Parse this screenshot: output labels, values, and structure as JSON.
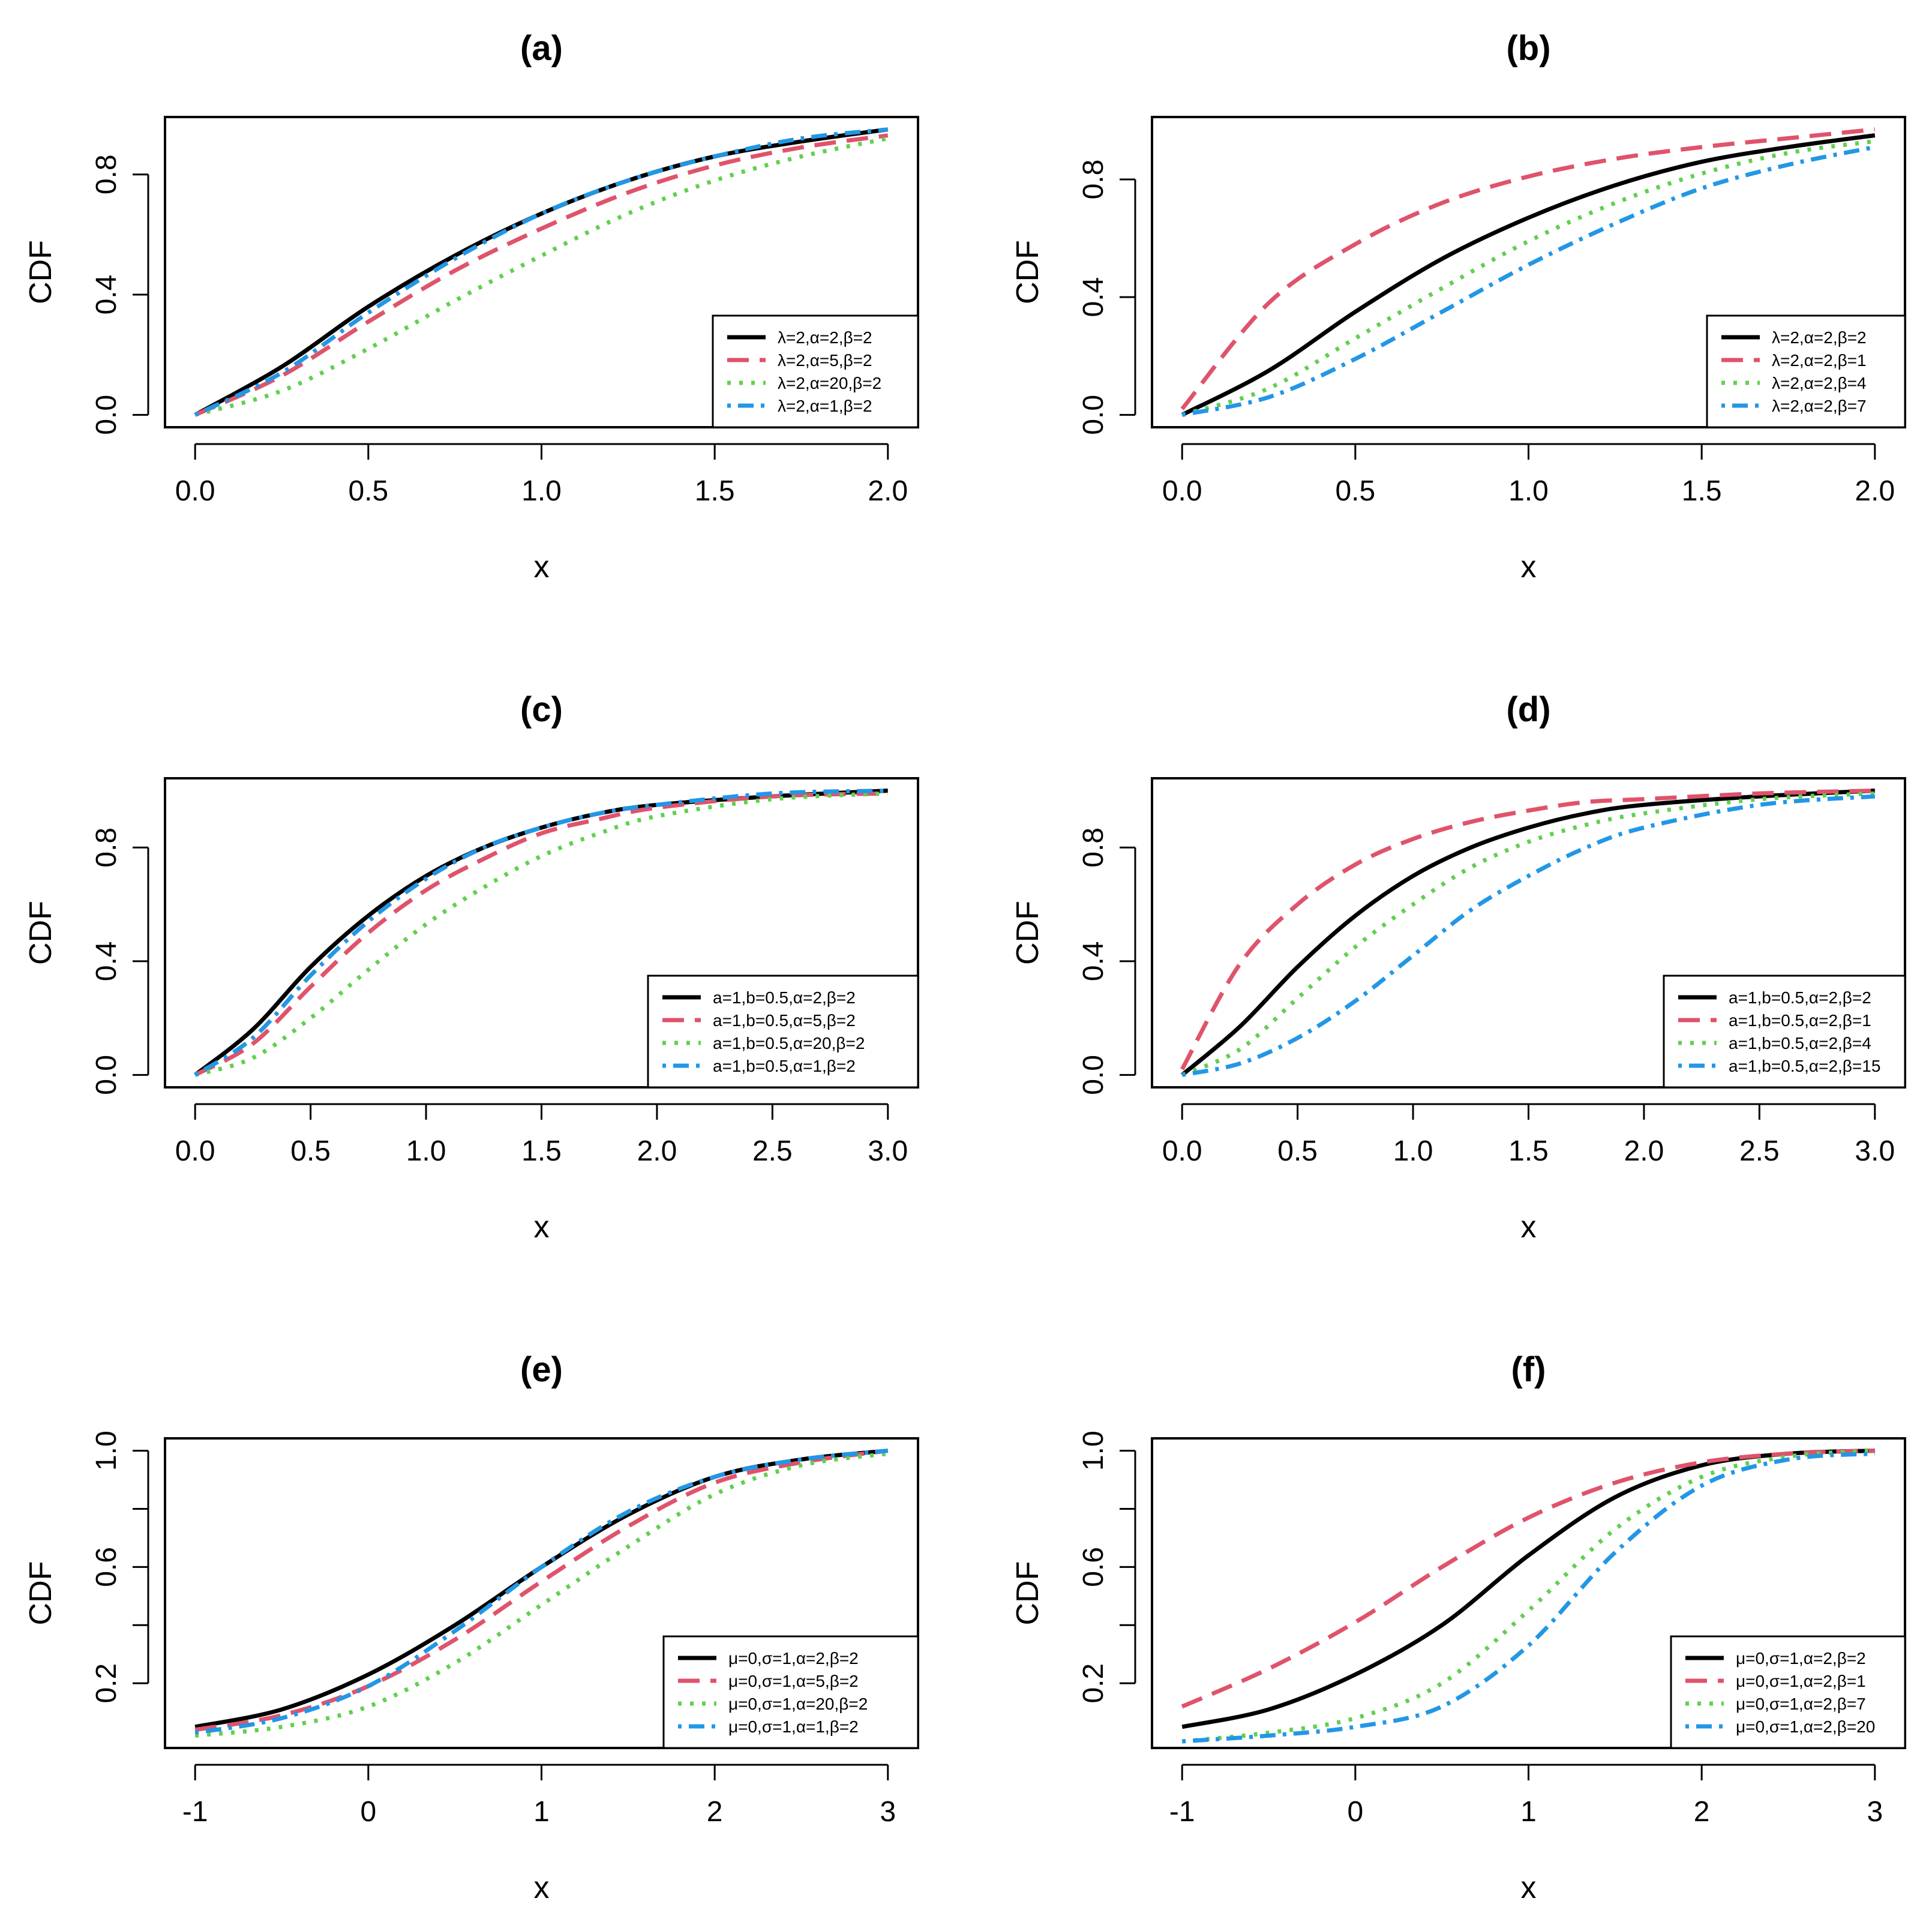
{
  "colors": {
    "black": "#000000",
    "red": "#DF536B",
    "green": "#61D04F",
    "blue": "#2297E6"
  },
  "chart_data": [
    {
      "type": "line",
      "title": "(a)",
      "xlabel": "x",
      "ylabel": "CDF",
      "xlim": [
        0,
        2
      ],
      "ylim": [
        0,
        0.95
      ],
      "xticks": [
        0.0,
        0.5,
        1.0,
        1.5,
        2.0
      ],
      "xtick_labels": [
        "0.0",
        "0.5",
        "1.0",
        "1.5",
        "2.0"
      ],
      "yticks": [
        0.0,
        0.4,
        0.8
      ],
      "ytick_labels": [
        "0.0",
        "0.4",
        "0.8"
      ],
      "legend_position": "bottom-right",
      "x": [
        0,
        0.25,
        0.5,
        0.75,
        1.0,
        1.25,
        1.5,
        1.75,
        2.0
      ],
      "series": [
        {
          "name": "λ=2,α=2,β=2",
          "color": "black",
          "dash": "solid",
          "values": [
            0.0,
            0.16,
            0.36,
            0.53,
            0.67,
            0.78,
            0.86,
            0.91,
            0.95
          ]
        },
        {
          "name": "λ=2,α=5,β=2",
          "color": "red",
          "dash": "dashed",
          "values": [
            0.0,
            0.13,
            0.31,
            0.48,
            0.62,
            0.74,
            0.83,
            0.89,
            0.93
          ]
        },
        {
          "name": "λ=2,α=20,β=2",
          "color": "green",
          "dash": "dotted",
          "values": [
            0.0,
            0.08,
            0.22,
            0.38,
            0.53,
            0.67,
            0.78,
            0.86,
            0.92
          ]
        },
        {
          "name": "λ=2,α=1,β=2",
          "color": "blue",
          "dash": "dotdash",
          "values": [
            0.0,
            0.14,
            0.34,
            0.52,
            0.67,
            0.78,
            0.86,
            0.92,
            0.95
          ]
        }
      ]
    },
    {
      "type": "line",
      "title": "(b)",
      "xlabel": "x",
      "ylabel": "CDF",
      "xlim": [
        0,
        2
      ],
      "ylim": [
        0,
        0.97
      ],
      "xticks": [
        0.0,
        0.5,
        1.0,
        1.5,
        2.0
      ],
      "xtick_labels": [
        "0.0",
        "0.5",
        "1.0",
        "1.5",
        "2.0"
      ],
      "yticks": [
        0.0,
        0.4,
        0.8
      ],
      "ytick_labels": [
        "0.0",
        "0.4",
        "0.8"
      ],
      "legend_position": "bottom-right",
      "x": [
        0,
        0.25,
        0.5,
        0.75,
        1.0,
        1.25,
        1.5,
        1.75,
        2.0
      ],
      "series": [
        {
          "name": "λ=2,α=2,β=2",
          "color": "black",
          "dash": "solid",
          "values": [
            0.0,
            0.15,
            0.35,
            0.53,
            0.67,
            0.78,
            0.86,
            0.91,
            0.95
          ]
        },
        {
          "name": "λ=2,α=2,β=1",
          "color": "red",
          "dash": "dashed",
          "values": [
            0.02,
            0.38,
            0.58,
            0.72,
            0.81,
            0.87,
            0.91,
            0.94,
            0.97
          ]
        },
        {
          "name": "λ=2,α=2,β=4",
          "color": "green",
          "dash": "dotted",
          "values": [
            0.0,
            0.09,
            0.26,
            0.43,
            0.59,
            0.72,
            0.82,
            0.89,
            0.93
          ]
        },
        {
          "name": "λ=2,α=2,β=7",
          "color": "blue",
          "dash": "dotdash",
          "values": [
            0.0,
            0.06,
            0.19,
            0.35,
            0.51,
            0.65,
            0.77,
            0.85,
            0.91
          ]
        }
      ]
    },
    {
      "type": "line",
      "title": "(c)",
      "xlabel": "x",
      "ylabel": "CDF",
      "xlim": [
        0,
        3
      ],
      "ylim": [
        0,
        1.0
      ],
      "xticks": [
        0.0,
        0.5,
        1.0,
        1.5,
        2.0,
        2.5,
        3.0
      ],
      "xtick_labels": [
        "0.0",
        "0.5",
        "1.0",
        "1.5",
        "2.0",
        "2.5",
        "3.0"
      ],
      "yticks": [
        0.0,
        0.4,
        0.8
      ],
      "ytick_labels": [
        "0.0",
        "0.4",
        "0.8"
      ],
      "legend_position": "bottom-right",
      "x": [
        0,
        0.25,
        0.5,
        0.75,
        1.0,
        1.25,
        1.5,
        1.75,
        2.0,
        2.5,
        3.0
      ],
      "series": [
        {
          "name": "a=1,b=0.5,α=2,β=2",
          "color": "black",
          "dash": "solid",
          "values": [
            0.0,
            0.16,
            0.38,
            0.56,
            0.7,
            0.8,
            0.87,
            0.92,
            0.95,
            0.98,
            1.0
          ]
        },
        {
          "name": "a=1,b=0.5,α=5,β=2",
          "color": "red",
          "dash": "dashed",
          "values": [
            0.0,
            0.11,
            0.31,
            0.5,
            0.65,
            0.76,
            0.85,
            0.9,
            0.94,
            0.98,
            0.99
          ]
        },
        {
          "name": "a=1,b=0.5,α=20,β=2",
          "color": "green",
          "dash": "dotted",
          "values": [
            0.0,
            0.06,
            0.2,
            0.37,
            0.53,
            0.66,
            0.77,
            0.85,
            0.91,
            0.97,
            0.99
          ]
        },
        {
          "name": "a=1,b=0.5,α=1,β=2",
          "color": "blue",
          "dash": "dotdash",
          "values": [
            0.0,
            0.13,
            0.35,
            0.54,
            0.69,
            0.8,
            0.87,
            0.92,
            0.95,
            0.99,
            1.0
          ]
        }
      ]
    },
    {
      "type": "line",
      "title": "(d)",
      "xlabel": "x",
      "ylabel": "CDF",
      "xlim": [
        0,
        3
      ],
      "ylim": [
        0,
        1.0
      ],
      "xticks": [
        0.0,
        0.5,
        1.0,
        1.5,
        2.0,
        2.5,
        3.0
      ],
      "xtick_labels": [
        "0.0",
        "0.5",
        "1.0",
        "1.5",
        "2.0",
        "2.5",
        "3.0"
      ],
      "yticks": [
        0.0,
        0.4,
        0.8
      ],
      "ytick_labels": [
        "0.0",
        "0.4",
        "0.8"
      ],
      "legend_position": "bottom-right",
      "x": [
        0,
        0.25,
        0.5,
        0.75,
        1.0,
        1.25,
        1.5,
        1.75,
        2.0,
        2.5,
        3.0
      ],
      "series": [
        {
          "name": "a=1,b=0.5,α=2,β=2",
          "color": "black",
          "dash": "solid",
          "values": [
            0.0,
            0.17,
            0.38,
            0.56,
            0.7,
            0.8,
            0.87,
            0.92,
            0.95,
            0.98,
            1.0
          ]
        },
        {
          "name": "a=1,b=0.5,α=2,β=1",
          "color": "red",
          "dash": "dashed",
          "values": [
            0.02,
            0.39,
            0.6,
            0.74,
            0.83,
            0.89,
            0.93,
            0.96,
            0.97,
            0.99,
            1.0
          ]
        },
        {
          "name": "a=1,b=0.5,α=2,β=4",
          "color": "green",
          "dash": "dotted",
          "values": [
            0.0,
            0.09,
            0.27,
            0.45,
            0.6,
            0.73,
            0.82,
            0.88,
            0.92,
            0.97,
            0.99
          ]
        },
        {
          "name": "a=1,b=0.5,α=2,β=15",
          "color": "blue",
          "dash": "dotdash",
          "values": [
            0.0,
            0.04,
            0.13,
            0.26,
            0.42,
            0.58,
            0.7,
            0.8,
            0.87,
            0.95,
            0.98
          ]
        }
      ]
    },
    {
      "type": "line",
      "title": "(e)",
      "xlabel": "x",
      "ylabel": "CDF",
      "xlim": [
        -1,
        3
      ],
      "ylim": [
        0.02,
        1.0
      ],
      "xticks": [
        -1,
        0,
        1,
        2,
        3
      ],
      "xtick_labels": [
        "-1",
        "0",
        "1",
        "2",
        "3"
      ],
      "yticks": [
        0.2,
        0.6,
        1.0
      ],
      "ytick_labels": [
        "0.2",
        "0.6",
        "1.0"
      ],
      "yminor": [
        0.4,
        0.8
      ],
      "legend_position": "bottom-right",
      "x": [
        -1,
        -0.5,
        0,
        0.5,
        1.0,
        1.5,
        2.0,
        2.5,
        3.0
      ],
      "series": [
        {
          "name": "μ=0,σ=1,α=2,β=2",
          "color": "black",
          "dash": "solid",
          "values": [
            0.05,
            0.11,
            0.23,
            0.4,
            0.6,
            0.78,
            0.91,
            0.97,
            1.0
          ]
        },
        {
          "name": "μ=0,σ=1,α=5,β=2",
          "color": "red",
          "dash": "dashed",
          "values": [
            0.04,
            0.09,
            0.19,
            0.35,
            0.55,
            0.74,
            0.89,
            0.96,
            1.0
          ]
        },
        {
          "name": "μ=0,σ=1,α=20,β=2",
          "color": "green",
          "dash": "dotted",
          "values": [
            0.02,
            0.05,
            0.12,
            0.27,
            0.47,
            0.67,
            0.85,
            0.95,
            0.99
          ]
        },
        {
          "name": "μ=0,σ=1,α=1,β=2",
          "color": "blue",
          "dash": "dotdash",
          "values": [
            0.03,
            0.08,
            0.19,
            0.38,
            0.6,
            0.79,
            0.91,
            0.97,
            1.0
          ]
        }
      ]
    },
    {
      "type": "line",
      "title": "(f)",
      "xlabel": "x",
      "ylabel": "CDF",
      "xlim": [
        -1,
        3
      ],
      "ylim": [
        0.02,
        1.0
      ],
      "xticks": [
        -1,
        0,
        1,
        2,
        3
      ],
      "xtick_labels": [
        "-1",
        "0",
        "1",
        "2",
        "3"
      ],
      "yticks": [
        0.2,
        0.6,
        1.0
      ],
      "ytick_labels": [
        "0.2",
        "0.6",
        "1.0"
      ],
      "yminor": [
        0.4,
        0.8
      ],
      "legend_position": "bottom-right",
      "x": [
        -1,
        -0.5,
        0,
        0.5,
        1.0,
        1.5,
        2.0,
        2.5,
        3.0
      ],
      "series": [
        {
          "name": "μ=0,σ=1,α=2,β=2",
          "color": "black",
          "dash": "solid",
          "values": [
            0.05,
            0.11,
            0.23,
            0.4,
            0.64,
            0.84,
            0.95,
            0.99,
            1.0
          ]
        },
        {
          "name": "μ=0,σ=1,α=2,β=1",
          "color": "red",
          "dash": "dashed",
          "values": [
            0.12,
            0.25,
            0.41,
            0.6,
            0.77,
            0.89,
            0.96,
            0.99,
            1.0
          ]
        },
        {
          "name": "μ=0,σ=1,α=2,β=7",
          "color": "green",
          "dash": "dotted",
          "values": [
            0.0,
            0.03,
            0.08,
            0.2,
            0.45,
            0.73,
            0.91,
            0.98,
            1.0
          ]
        },
        {
          "name": "μ=0,σ=1,α=2,β=20",
          "color": "blue",
          "dash": "dotdash",
          "values": [
            0.0,
            0.02,
            0.05,
            0.12,
            0.33,
            0.65,
            0.88,
            0.97,
            0.99
          ]
        }
      ]
    }
  ]
}
